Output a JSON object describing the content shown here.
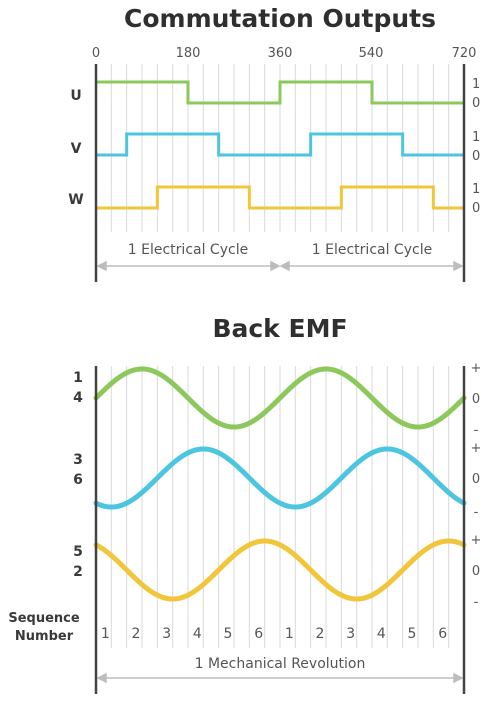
{
  "commutation": {
    "title": "Commutation Outputs",
    "degree_ticks": [
      "0",
      "180",
      "360",
      "540",
      "720"
    ],
    "phases": [
      {
        "name": "U",
        "high": "1",
        "low": "0",
        "color": "#8dc85c",
        "start_high": true,
        "transitions": [
          180,
          360,
          540
        ]
      },
      {
        "name": "V",
        "high": "1",
        "low": "0",
        "color": "#4cc6e0",
        "start_high": false,
        "transitions": [
          60,
          240,
          420,
          600
        ]
      },
      {
        "name": "W",
        "high": "1",
        "low": "0",
        "color": "#f2c63a",
        "start_high": false,
        "transitions": [
          120,
          300,
          480,
          660
        ]
      }
    ],
    "cycle_label_1": "1 Electrical Cycle",
    "cycle_label_2": "1 Electrical Cycle"
  },
  "back_emf": {
    "title": "Back EMF",
    "traces": [
      {
        "label_top": "1",
        "label_bottom": "4",
        "plus": "+",
        "zero": "0",
        "minus": "-",
        "color": "#8dc85c",
        "phase_deg": 0
      },
      {
        "label_top": "3",
        "label_bottom": "6",
        "plus": "+",
        "zero": "0",
        "minus": "-",
        "color": "#4cc6e0",
        "phase_deg": -120
      },
      {
        "label_top": "5",
        "label_bottom": "2",
        "plus": "+",
        "zero": "0",
        "minus": "-",
        "color": "#f2c63a",
        "phase_deg": -240
      }
    ],
    "sequence_label_1": "Sequence",
    "sequence_label_2": "Number",
    "sequence": [
      "1",
      "2",
      "3",
      "4",
      "5",
      "6",
      "1",
      "2",
      "3",
      "4",
      "5",
      "6"
    ],
    "revolution_label": "1 Mechanical Revolution"
  },
  "colors": {
    "grid": "#d9d9d9",
    "axis": "#444444",
    "arrow": "#bdbdbd"
  }
}
